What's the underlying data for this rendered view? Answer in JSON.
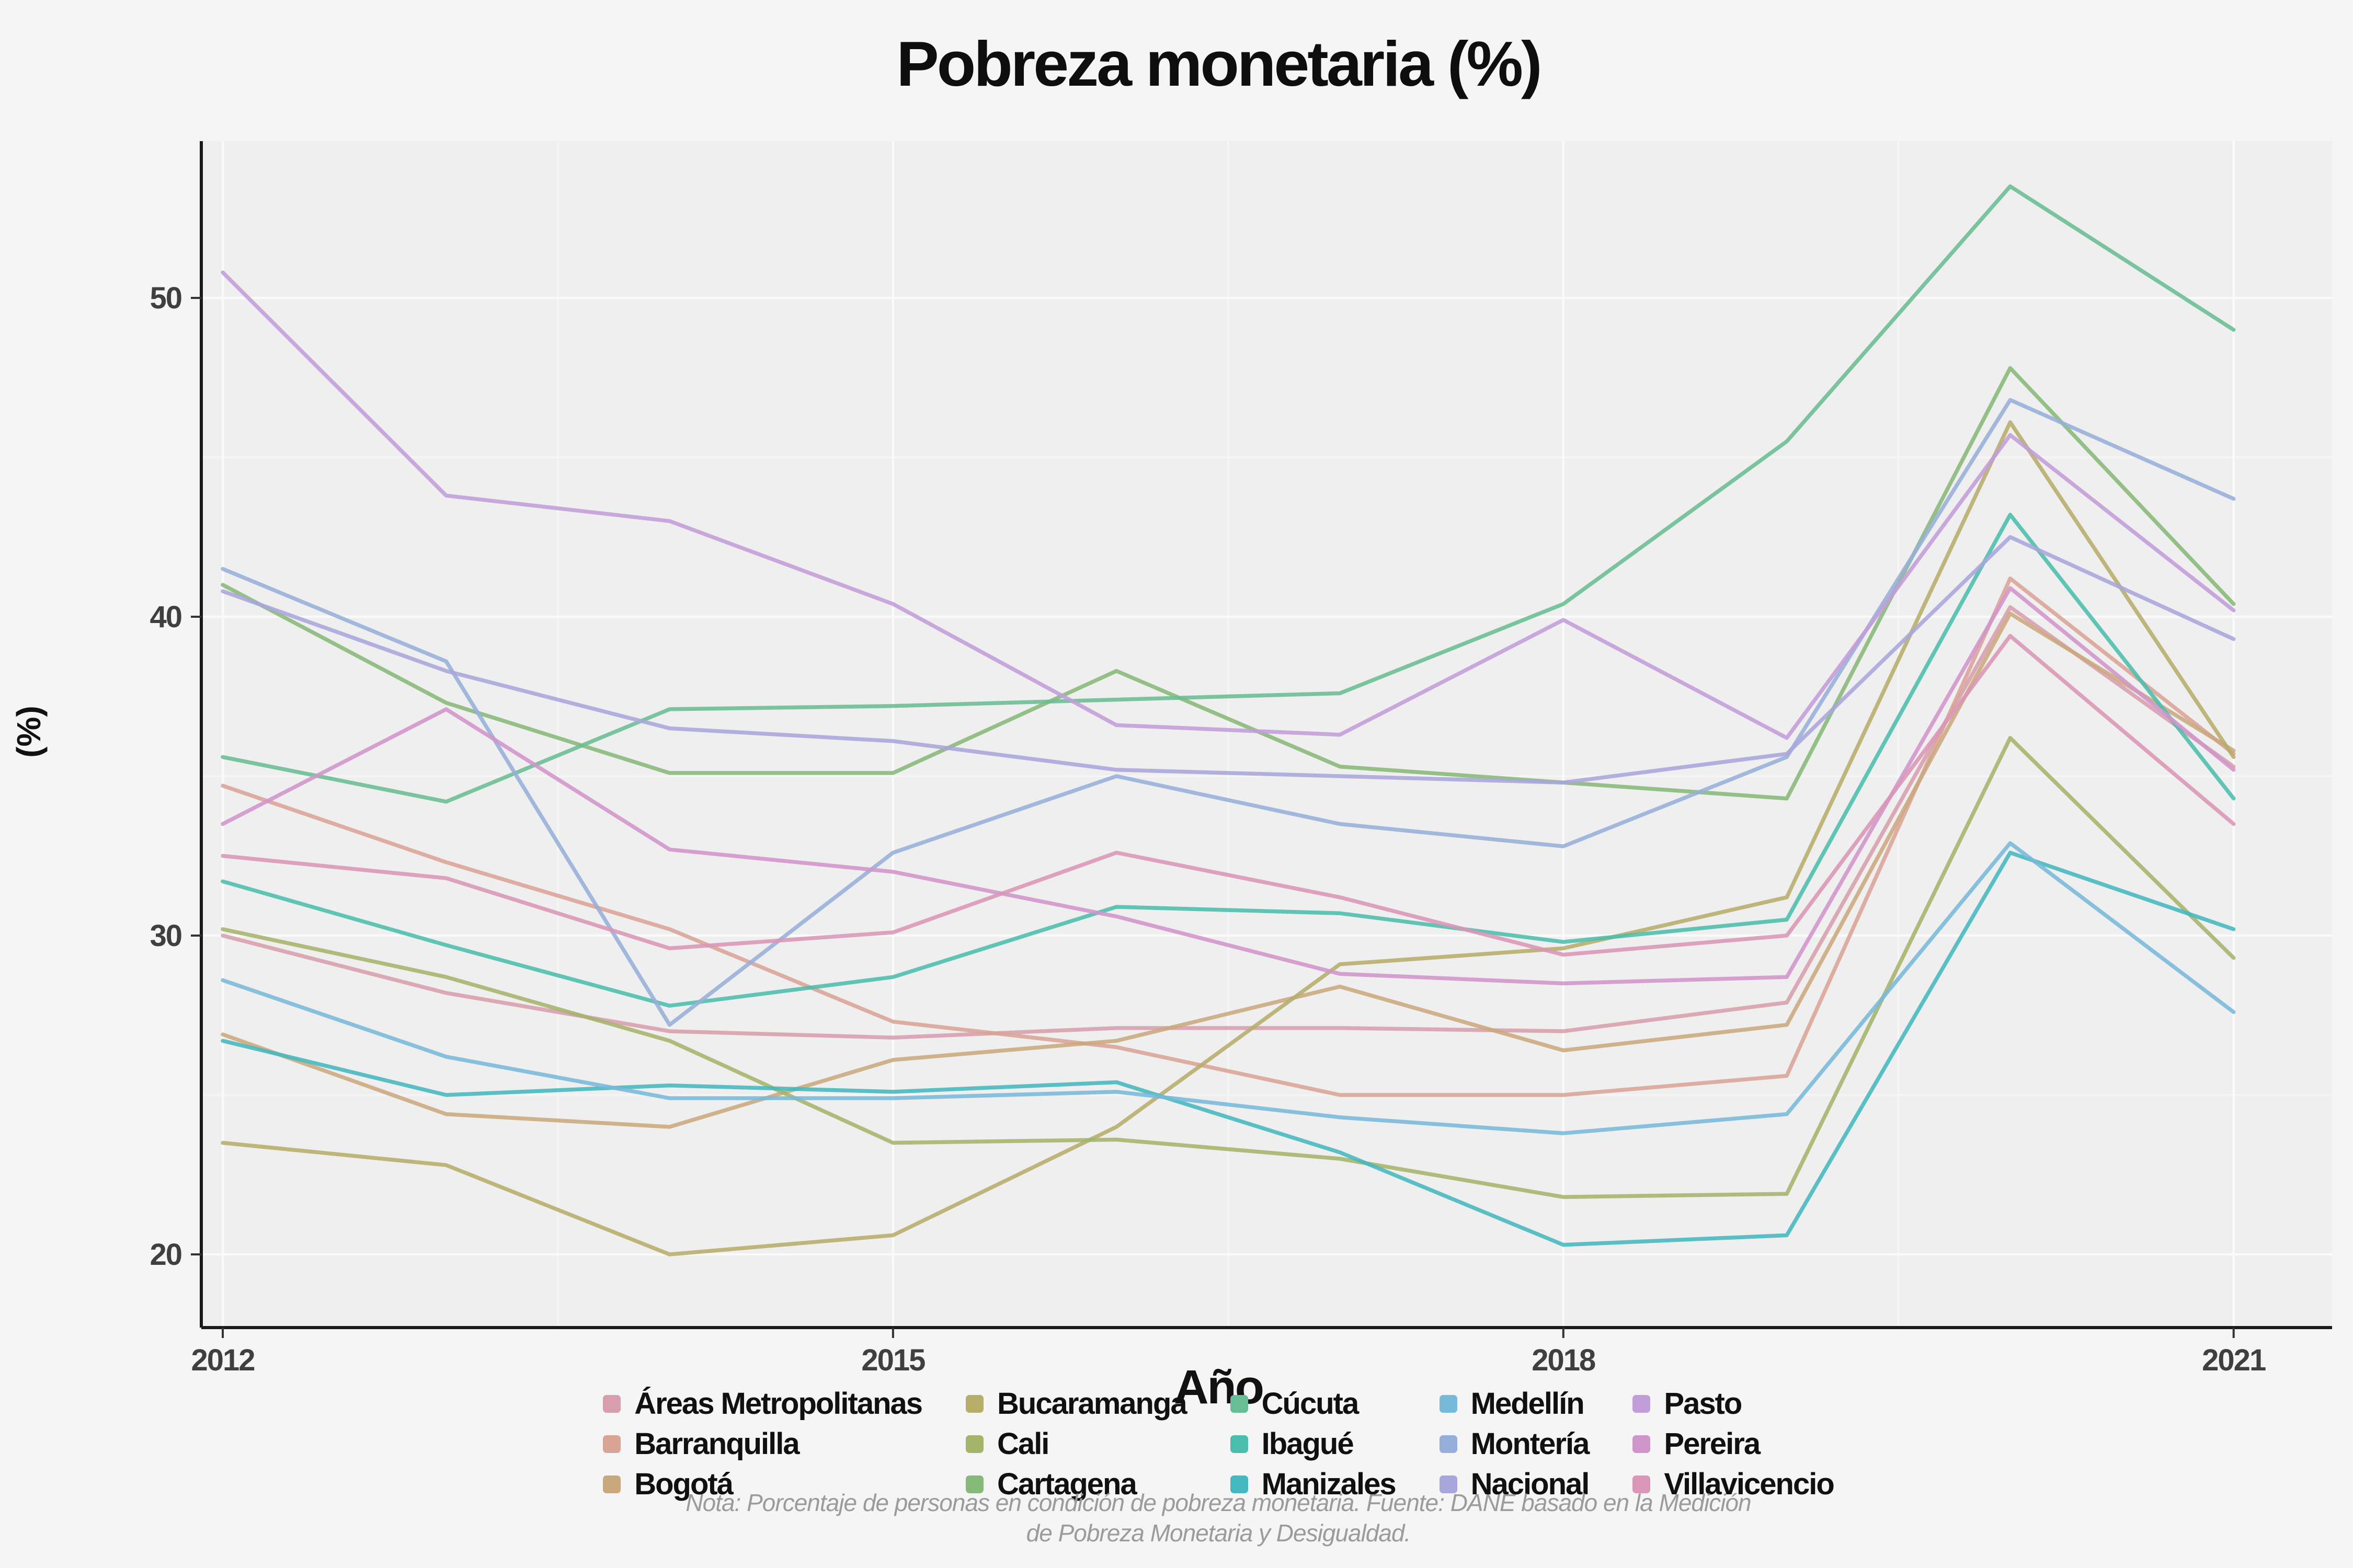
{
  "title": "Pobreza monetaria (%)",
  "axes": {
    "x_label": "Año",
    "y_label": "(%)",
    "x_ticks": [
      2012,
      2015,
      2018,
      2021
    ],
    "y_ticks": [
      20,
      30,
      40,
      50
    ]
  },
  "note": {
    "line1": "Nota: Porcentaje de personas en condición de pobreza monetaria. Fuente: DANE basado en la Medición",
    "line2": "de Pobreza Monetaria y Desigualdad."
  },
  "colors": {
    "panel_background": "#f0efef",
    "outer_background": "#f6f5f5",
    "grid_major": "#fafafa",
    "grid_minor": "#f7f6f6",
    "axis_line": "#1a1a1a",
    "tick_text": "#3f3f3f"
  },
  "chart_data": {
    "type": "line",
    "x": [
      2012,
      2013,
      2014,
      2015,
      2016,
      2017,
      2018,
      2019,
      2020,
      2021
    ],
    "xlim": [
      2011.9,
      2021.45
    ],
    "ylim": [
      18.4,
      54.9
    ],
    "legend_position": "bottom",
    "grid": "on",
    "series": [
      {
        "name": "Áreas Metropolitanas",
        "key": "areas-metropolitanas",
        "color": "#d79fae",
        "values": [
          30.0,
          28.2,
          27.0,
          26.8,
          27.1,
          27.1,
          27.0,
          27.9,
          40.3,
          35.3
        ]
      },
      {
        "name": "Barranquilla",
        "key": "barranquilla",
        "color": "#d8a495",
        "values": [
          34.7,
          32.3,
          30.2,
          27.3,
          26.5,
          25.0,
          25.0,
          25.6,
          41.2,
          35.7
        ]
      },
      {
        "name": "Bogotá",
        "key": "bogota",
        "color": "#c9a87d",
        "values": [
          26.9,
          24.4,
          24.0,
          26.1,
          26.7,
          28.4,
          26.4,
          27.2,
          40.1,
          35.8
        ]
      },
      {
        "name": "Bucaramanga",
        "key": "bucaramanga",
        "color": "#b6ad6b",
        "values": [
          23.5,
          22.8,
          20.0,
          20.6,
          24.0,
          29.1,
          29.6,
          31.2,
          46.1,
          35.6
        ]
      },
      {
        "name": "Cali",
        "key": "cali",
        "color": "#a4b46b",
        "values": [
          30.2,
          28.7,
          26.7,
          23.5,
          23.6,
          23.0,
          21.8,
          21.9,
          36.2,
          29.3
        ]
      },
      {
        "name": "Cartagena",
        "key": "cartagena",
        "color": "#86ba79",
        "values": [
          41.0,
          37.3,
          35.1,
          35.1,
          38.3,
          35.3,
          34.8,
          34.3,
          47.8,
          40.4
        ]
      },
      {
        "name": "Cúcuta",
        "key": "cucuta",
        "color": "#69bd94",
        "values": [
          35.6,
          34.2,
          37.1,
          37.2,
          37.4,
          37.6,
          40.4,
          45.5,
          53.5,
          49.0
        ]
      },
      {
        "name": "Ibagué",
        "key": "ibague",
        "color": "#4abeac",
        "values": [
          31.7,
          29.7,
          27.8,
          28.7,
          30.9,
          30.7,
          29.8,
          30.5,
          43.2,
          34.3
        ]
      },
      {
        "name": "Manizales",
        "key": "manizales",
        "color": "#43b8bf",
        "values": [
          26.7,
          25.0,
          25.3,
          25.1,
          25.4,
          23.2,
          20.3,
          20.6,
          32.6,
          30.2
        ]
      },
      {
        "name": "Medellín",
        "key": "medellin",
        "color": "#77b9d9",
        "values": [
          28.6,
          26.2,
          24.9,
          24.9,
          25.1,
          24.3,
          23.8,
          24.4,
          32.9,
          27.6
        ]
      },
      {
        "name": "Montería",
        "key": "monteria",
        "color": "#96afda",
        "values": [
          41.5,
          38.6,
          27.2,
          32.6,
          35.0,
          33.5,
          32.8,
          35.6,
          46.8,
          43.7
        ]
      },
      {
        "name": "Nacional",
        "key": "nacional",
        "color": "#a9a6dc",
        "values": [
          40.8,
          38.3,
          36.5,
          36.1,
          35.2,
          35.0,
          34.8,
          35.7,
          42.5,
          39.3
        ]
      },
      {
        "name": "Pasto",
        "key": "pasto",
        "color": "#c19dda",
        "values": [
          50.8,
          43.8,
          43.0,
          40.4,
          36.6,
          36.3,
          39.9,
          36.2,
          45.7,
          40.2
        ]
      },
      {
        "name": "Pereira",
        "key": "pereira",
        "color": "#d095cb",
        "values": [
          33.5,
          37.1,
          32.7,
          32.0,
          30.6,
          28.8,
          28.5,
          28.7,
          40.9,
          35.2
        ]
      },
      {
        "name": "Villavicencio",
        "key": "villavicencio",
        "color": "#da96b7",
        "values": [
          32.5,
          31.8,
          29.6,
          30.1,
          32.6,
          31.2,
          29.4,
          30.0,
          39.4,
          33.5
        ]
      }
    ]
  }
}
